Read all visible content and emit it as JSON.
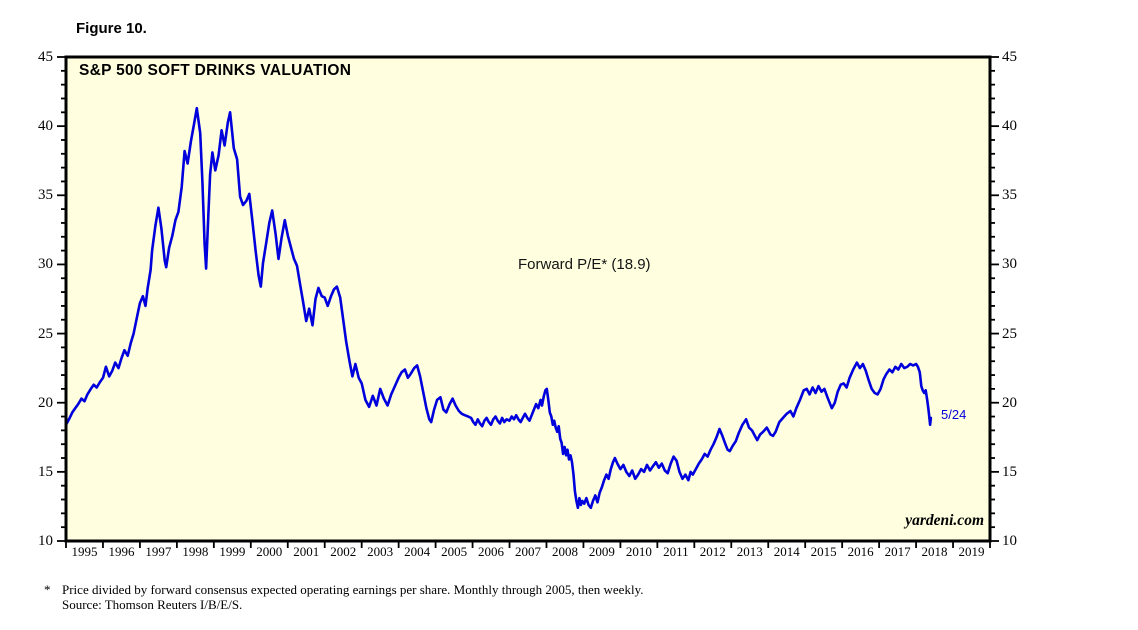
{
  "figure_label": "Figure 10.",
  "chart": {
    "title": "S&P 500 SOFT DRINKS VALUATION",
    "annotation_label": "Forward P/E* (18.9)",
    "latest_date_label": "5/24",
    "watermark": "yardeni.com",
    "line_color": "#0000dd",
    "plot_bg_color": "#ffffe0",
    "border_color": "#000000"
  },
  "footnote": {
    "marker": "*",
    "line1": "Price divided by forward consensus expected operating earnings per share. Monthly through 2005, then weekly.",
    "line2": "Source: Thomson Reuters I/B/E/S."
  },
  "chart_data": {
    "type": "line",
    "title": "S&P 500 SOFT DRINKS VALUATION",
    "series_name": "Forward P/E",
    "latest_value": 18.9,
    "latest_date": "5/24",
    "xlim": [
      1995,
      2020
    ],
    "ylim": [
      10,
      45
    ],
    "y_major_ticks": [
      10,
      15,
      20,
      25,
      30,
      35,
      40,
      45
    ],
    "y_minor_step": 1,
    "x_tick_labels": [
      "1995",
      "1996",
      "1997",
      "1998",
      "1999",
      "2000",
      "2001",
      "2002",
      "2003",
      "2004",
      "2005",
      "2006",
      "2007",
      "2008",
      "2009",
      "2010",
      "2011",
      "2012",
      "2013",
      "2014",
      "2015",
      "2016",
      "2017",
      "2018",
      "2019"
    ],
    "grid": false,
    "points": [
      [
        1995.0,
        18.4
      ],
      [
        1995.08,
        18.8
      ],
      [
        1995.17,
        19.3
      ],
      [
        1995.25,
        19.6
      ],
      [
        1995.33,
        19.9
      ],
      [
        1995.42,
        20.3
      ],
      [
        1995.5,
        20.1
      ],
      [
        1995.58,
        20.6
      ],
      [
        1995.67,
        21.0
      ],
      [
        1995.75,
        21.3
      ],
      [
        1995.83,
        21.1
      ],
      [
        1995.92,
        21.5
      ],
      [
        1996.0,
        21.8
      ],
      [
        1996.08,
        22.6
      ],
      [
        1996.17,
        21.9
      ],
      [
        1996.25,
        22.3
      ],
      [
        1996.33,
        22.9
      ],
      [
        1996.42,
        22.5
      ],
      [
        1996.5,
        23.2
      ],
      [
        1996.58,
        23.8
      ],
      [
        1996.67,
        23.4
      ],
      [
        1996.75,
        24.3
      ],
      [
        1996.83,
        25.0
      ],
      [
        1996.92,
        26.2
      ],
      [
        1997.0,
        27.2
      ],
      [
        1997.08,
        27.7
      ],
      [
        1997.15,
        27.0
      ],
      [
        1997.21,
        28.3
      ],
      [
        1997.29,
        29.6
      ],
      [
        1997.33,
        31.0
      ],
      [
        1997.42,
        32.8
      ],
      [
        1997.5,
        34.1
      ],
      [
        1997.58,
        32.6
      ],
      [
        1997.67,
        30.3
      ],
      [
        1997.71,
        29.8
      ],
      [
        1997.79,
        31.2
      ],
      [
        1997.88,
        32.1
      ],
      [
        1997.96,
        33.2
      ],
      [
        1998.04,
        33.8
      ],
      [
        1998.13,
        35.6
      ],
      [
        1998.21,
        38.2
      ],
      [
        1998.29,
        37.3
      ],
      [
        1998.38,
        38.9
      ],
      [
        1998.46,
        40.1
      ],
      [
        1998.54,
        41.3
      ],
      [
        1998.63,
        39.5
      ],
      [
        1998.69,
        36.0
      ],
      [
        1998.75,
        31.5
      ],
      [
        1998.79,
        29.7
      ],
      [
        1998.85,
        33.5
      ],
      [
        1998.9,
        36.5
      ],
      [
        1998.96,
        38.1
      ],
      [
        1999.04,
        36.8
      ],
      [
        1999.13,
        37.9
      ],
      [
        1999.21,
        39.7
      ],
      [
        1999.29,
        38.6
      ],
      [
        1999.38,
        40.3
      ],
      [
        1999.44,
        41.0
      ],
      [
        1999.54,
        38.4
      ],
      [
        1999.63,
        37.6
      ],
      [
        1999.71,
        34.9
      ],
      [
        1999.79,
        34.3
      ],
      [
        1999.88,
        34.6
      ],
      [
        1999.96,
        35.1
      ],
      [
        2000.04,
        33.2
      ],
      [
        2000.13,
        31.0
      ],
      [
        2000.21,
        29.2
      ],
      [
        2000.27,
        28.4
      ],
      [
        2000.33,
        30.1
      ],
      [
        2000.42,
        31.6
      ],
      [
        2000.5,
        33.0
      ],
      [
        2000.58,
        33.9
      ],
      [
        2000.67,
        32.2
      ],
      [
        2000.75,
        30.4
      ],
      [
        2000.83,
        31.9
      ],
      [
        2000.92,
        33.2
      ],
      [
        2001.0,
        32.1
      ],
      [
        2001.08,
        31.3
      ],
      [
        2001.17,
        30.4
      ],
      [
        2001.25,
        29.9
      ],
      [
        2001.33,
        28.6
      ],
      [
        2001.42,
        27.2
      ],
      [
        2001.5,
        25.9
      ],
      [
        2001.58,
        26.8
      ],
      [
        2001.67,
        25.6
      ],
      [
        2001.75,
        27.5
      ],
      [
        2001.83,
        28.3
      ],
      [
        2001.92,
        27.7
      ],
      [
        2002.0,
        27.6
      ],
      [
        2002.08,
        27.0
      ],
      [
        2002.17,
        27.7
      ],
      [
        2002.25,
        28.2
      ],
      [
        2002.33,
        28.4
      ],
      [
        2002.42,
        27.6
      ],
      [
        2002.5,
        26.0
      ],
      [
        2002.58,
        24.4
      ],
      [
        2002.67,
        23.0
      ],
      [
        2002.75,
        21.9
      ],
      [
        2002.83,
        22.8
      ],
      [
        2002.92,
        21.8
      ],
      [
        2003.0,
        21.4
      ],
      [
        2003.1,
        20.2
      ],
      [
        2003.2,
        19.7
      ],
      [
        2003.3,
        20.5
      ],
      [
        2003.4,
        19.8
      ],
      [
        2003.5,
        21.0
      ],
      [
        2003.6,
        20.3
      ],
      [
        2003.7,
        19.8
      ],
      [
        2003.8,
        20.6
      ],
      [
        2003.9,
        21.2
      ],
      [
        2004.0,
        21.8
      ],
      [
        2004.08,
        22.2
      ],
      [
        2004.17,
        22.4
      ],
      [
        2004.25,
        21.8
      ],
      [
        2004.33,
        22.1
      ],
      [
        2004.42,
        22.5
      ],
      [
        2004.5,
        22.7
      ],
      [
        2004.58,
        21.9
      ],
      [
        2004.67,
        20.7
      ],
      [
        2004.75,
        19.6
      ],
      [
        2004.83,
        18.8
      ],
      [
        2004.88,
        18.6
      ],
      [
        2004.96,
        19.5
      ],
      [
        2005.04,
        20.2
      ],
      [
        2005.13,
        20.4
      ],
      [
        2005.21,
        19.5
      ],
      [
        2005.29,
        19.3
      ],
      [
        2005.38,
        19.9
      ],
      [
        2005.46,
        20.3
      ],
      [
        2005.54,
        19.8
      ],
      [
        2005.63,
        19.4
      ],
      [
        2005.71,
        19.2
      ],
      [
        2005.79,
        19.1
      ],
      [
        2005.88,
        19.0
      ],
      [
        2005.96,
        18.9
      ],
      [
        2006.02,
        18.6
      ],
      [
        2006.08,
        18.4
      ],
      [
        2006.14,
        18.8
      ],
      [
        2006.2,
        18.5
      ],
      [
        2006.26,
        18.3
      ],
      [
        2006.32,
        18.7
      ],
      [
        2006.38,
        18.9
      ],
      [
        2006.44,
        18.6
      ],
      [
        2006.5,
        18.4
      ],
      [
        2006.56,
        18.8
      ],
      [
        2006.62,
        19.0
      ],
      [
        2006.68,
        18.7
      ],
      [
        2006.74,
        18.5
      ],
      [
        2006.8,
        18.9
      ],
      [
        2006.86,
        18.6
      ],
      [
        2006.92,
        18.8
      ],
      [
        2007.0,
        18.7
      ],
      [
        2007.06,
        19.0
      ],
      [
        2007.12,
        18.8
      ],
      [
        2007.18,
        19.1
      ],
      [
        2007.24,
        18.8
      ],
      [
        2007.3,
        18.6
      ],
      [
        2007.36,
        18.9
      ],
      [
        2007.42,
        19.2
      ],
      [
        2007.48,
        18.9
      ],
      [
        2007.54,
        18.7
      ],
      [
        2007.6,
        19.1
      ],
      [
        2007.66,
        19.5
      ],
      [
        2007.72,
        19.9
      ],
      [
        2007.78,
        19.6
      ],
      [
        2007.84,
        20.2
      ],
      [
        2007.88,
        19.8
      ],
      [
        2007.93,
        20.5
      ],
      [
        2007.97,
        20.9
      ],
      [
        2008.01,
        21.0
      ],
      [
        2008.05,
        20.2
      ],
      [
        2008.09,
        19.3
      ],
      [
        2008.13,
        19.0
      ],
      [
        2008.17,
        18.4
      ],
      [
        2008.21,
        18.7
      ],
      [
        2008.25,
        18.2
      ],
      [
        2008.29,
        17.9
      ],
      [
        2008.33,
        18.3
      ],
      [
        2008.37,
        17.4
      ],
      [
        2008.41,
        17.1
      ],
      [
        2008.45,
        16.3
      ],
      [
        2008.49,
        16.8
      ],
      [
        2008.53,
        16.2
      ],
      [
        2008.57,
        16.6
      ],
      [
        2008.61,
        15.9
      ],
      [
        2008.65,
        16.2
      ],
      [
        2008.69,
        15.7
      ],
      [
        2008.73,
        14.8
      ],
      [
        2008.77,
        13.6
      ],
      [
        2008.81,
        12.9
      ],
      [
        2008.85,
        12.4
      ],
      [
        2008.89,
        13.1
      ],
      [
        2008.93,
        12.6
      ],
      [
        2008.97,
        12.9
      ],
      [
        2009.02,
        12.7
      ],
      [
        2009.08,
        13.1
      ],
      [
        2009.14,
        12.6
      ],
      [
        2009.2,
        12.4
      ],
      [
        2009.26,
        12.9
      ],
      [
        2009.32,
        13.3
      ],
      [
        2009.38,
        12.8
      ],
      [
        2009.44,
        13.5
      ],
      [
        2009.5,
        13.9
      ],
      [
        2009.56,
        14.4
      ],
      [
        2009.62,
        14.8
      ],
      [
        2009.68,
        14.5
      ],
      [
        2009.74,
        15.2
      ],
      [
        2009.8,
        15.7
      ],
      [
        2009.85,
        16.0
      ],
      [
        2009.92,
        15.6
      ],
      [
        2010.0,
        15.2
      ],
      [
        2010.08,
        15.5
      ],
      [
        2010.16,
        15.0
      ],
      [
        2010.24,
        14.7
      ],
      [
        2010.32,
        15.1
      ],
      [
        2010.4,
        14.5
      ],
      [
        2010.48,
        14.8
      ],
      [
        2010.56,
        15.2
      ],
      [
        2010.64,
        15.0
      ],
      [
        2010.72,
        15.5
      ],
      [
        2010.8,
        15.1
      ],
      [
        2010.88,
        15.4
      ],
      [
        2010.96,
        15.7
      ],
      [
        2011.04,
        15.3
      ],
      [
        2011.12,
        15.6
      ],
      [
        2011.2,
        15.1
      ],
      [
        2011.28,
        14.9
      ],
      [
        2011.36,
        15.6
      ],
      [
        2011.44,
        16.1
      ],
      [
        2011.52,
        15.8
      ],
      [
        2011.6,
        15.0
      ],
      [
        2011.68,
        14.5
      ],
      [
        2011.76,
        14.8
      ],
      [
        2011.84,
        14.4
      ],
      [
        2011.9,
        15.0
      ],
      [
        2011.96,
        14.8
      ],
      [
        2012.04,
        15.2
      ],
      [
        2012.12,
        15.6
      ],
      [
        2012.2,
        15.9
      ],
      [
        2012.28,
        16.3
      ],
      [
        2012.36,
        16.1
      ],
      [
        2012.44,
        16.6
      ],
      [
        2012.52,
        17.0
      ],
      [
        2012.6,
        17.5
      ],
      [
        2012.68,
        18.1
      ],
      [
        2012.76,
        17.6
      ],
      [
        2012.84,
        17.0
      ],
      [
        2012.9,
        16.6
      ],
      [
        2012.96,
        16.5
      ],
      [
        2013.04,
        16.9
      ],
      [
        2013.12,
        17.2
      ],
      [
        2013.2,
        17.8
      ],
      [
        2013.3,
        18.4
      ],
      [
        2013.4,
        18.8
      ],
      [
        2013.48,
        18.2
      ],
      [
        2013.56,
        18.0
      ],
      [
        2013.64,
        17.6
      ],
      [
        2013.7,
        17.3
      ],
      [
        2013.78,
        17.7
      ],
      [
        2013.86,
        17.9
      ],
      [
        2013.96,
        18.2
      ],
      [
        2014.06,
        17.7
      ],
      [
        2014.13,
        17.6
      ],
      [
        2014.2,
        17.9
      ],
      [
        2014.3,
        18.6
      ],
      [
        2014.4,
        18.9
      ],
      [
        2014.5,
        19.2
      ],
      [
        2014.6,
        19.4
      ],
      [
        2014.68,
        19.0
      ],
      [
        2014.76,
        19.6
      ],
      [
        2014.86,
        20.2
      ],
      [
        2014.96,
        20.9
      ],
      [
        2015.04,
        21.0
      ],
      [
        2015.12,
        20.6
      ],
      [
        2015.2,
        21.1
      ],
      [
        2015.28,
        20.7
      ],
      [
        2015.36,
        21.2
      ],
      [
        2015.44,
        20.8
      ],
      [
        2015.52,
        21.0
      ],
      [
        2015.6,
        20.4
      ],
      [
        2015.72,
        19.6
      ],
      [
        2015.8,
        20.0
      ],
      [
        2015.88,
        20.8
      ],
      [
        2015.96,
        21.3
      ],
      [
        2016.04,
        21.4
      ],
      [
        2016.12,
        21.1
      ],
      [
        2016.2,
        21.8
      ],
      [
        2016.3,
        22.4
      ],
      [
        2016.4,
        22.9
      ],
      [
        2016.48,
        22.5
      ],
      [
        2016.56,
        22.8
      ],
      [
        2016.64,
        22.3
      ],
      [
        2016.72,
        21.6
      ],
      [
        2016.8,
        21.0
      ],
      [
        2016.88,
        20.7
      ],
      [
        2016.96,
        20.6
      ],
      [
        2017.04,
        21.0
      ],
      [
        2017.12,
        21.7
      ],
      [
        2017.2,
        22.1
      ],
      [
        2017.28,
        22.4
      ],
      [
        2017.36,
        22.2
      ],
      [
        2017.44,
        22.6
      ],
      [
        2017.52,
        22.4
      ],
      [
        2017.6,
        22.8
      ],
      [
        2017.68,
        22.5
      ],
      [
        2017.76,
        22.6
      ],
      [
        2017.84,
        22.8
      ],
      [
        2017.92,
        22.7
      ],
      [
        2018.0,
        22.8
      ],
      [
        2018.05,
        22.6
      ],
      [
        2018.1,
        22.2
      ],
      [
        2018.14,
        21.2
      ],
      [
        2018.18,
        20.9
      ],
      [
        2018.22,
        20.7
      ],
      [
        2018.26,
        20.9
      ],
      [
        2018.3,
        20.2
      ],
      [
        2018.33,
        19.6
      ],
      [
        2018.36,
        18.9
      ],
      [
        2018.38,
        18.4
      ],
      [
        2018.4,
        18.9
      ]
    ]
  }
}
